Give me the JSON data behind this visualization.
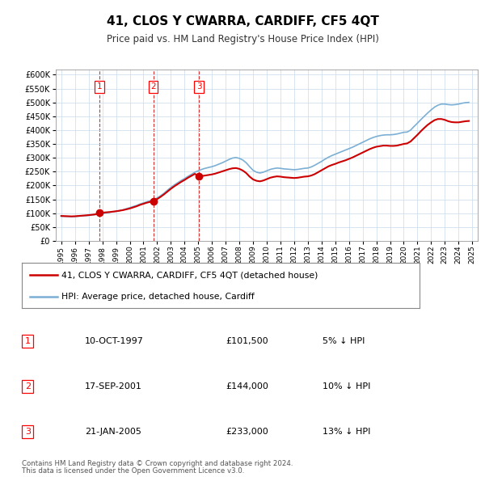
{
  "title": "41, CLOS Y CWARRA, CARDIFF, CF5 4QT",
  "subtitle": "Price paid vs. HM Land Registry's House Price Index (HPI)",
  "legend_line1": "41, CLOS Y CWARRA, CARDIFF, CF5 4QT (detached house)",
  "legend_line2": "HPI: Average price, detached house, Cardiff",
  "footer_line1": "Contains HM Land Registry data © Crown copyright and database right 2024.",
  "footer_line2": "This data is licensed under the Open Government Licence v3.0.",
  "transactions": [
    {
      "num": 1,
      "date": "10-OCT-1997",
      "price": 101500,
      "price_str": "£101,500",
      "pct": "5%",
      "year": 1997.78
    },
    {
      "num": 2,
      "date": "17-SEP-2001",
      "price": 144000,
      "price_str": "£144,000",
      "pct": "10%",
      "year": 2001.71
    },
    {
      "num": 3,
      "date": "21-JAN-2005",
      "price": 233000,
      "price_str": "£233,000",
      "pct": "13%",
      "year": 2005.05
    }
  ],
  "price_color": "#cc0000",
  "hpi_color": "#7bafd4",
  "vline_color": "#cc0000",
  "dot_color": "#cc0000",
  "ylim": [
    0,
    620000
  ],
  "yticks": [
    0,
    50000,
    100000,
    150000,
    200000,
    250000,
    300000,
    350000,
    400000,
    450000,
    500000,
    550000,
    600000
  ],
  "xlim_start": 1994.6,
  "xlim_end": 2025.4,
  "xticks": [
    1995,
    1996,
    1997,
    1998,
    1999,
    2000,
    2001,
    2002,
    2003,
    2004,
    2005,
    2006,
    2007,
    2008,
    2009,
    2010,
    2011,
    2012,
    2013,
    2014,
    2015,
    2016,
    2017,
    2018,
    2019,
    2020,
    2021,
    2022,
    2023,
    2024,
    2025
  ],
  "hpi_data": [
    [
      1995.0,
      89000
    ],
    [
      1995.25,
      88500
    ],
    [
      1995.5,
      88000
    ],
    [
      1995.75,
      87500
    ],
    [
      1996.0,
      88000
    ],
    [
      1996.25,
      89000
    ],
    [
      1996.5,
      90000
    ],
    [
      1996.75,
      91000
    ],
    [
      1997.0,
      92000
    ],
    [
      1997.25,
      93500
    ],
    [
      1997.5,
      95000
    ],
    [
      1997.75,
      97000
    ],
    [
      1998.0,
      99000
    ],
    [
      1998.25,
      101000
    ],
    [
      1998.5,
      103000
    ],
    [
      1998.75,
      105000
    ],
    [
      1999.0,
      107000
    ],
    [
      1999.25,
      109000
    ],
    [
      1999.5,
      112000
    ],
    [
      1999.75,
      116000
    ],
    [
      2000.0,
      120000
    ],
    [
      2000.25,
      124000
    ],
    [
      2000.5,
      128000
    ],
    [
      2000.75,
      133000
    ],
    [
      2001.0,
      137000
    ],
    [
      2001.25,
      141000
    ],
    [
      2001.5,
      145000
    ],
    [
      2001.75,
      149000
    ],
    [
      2002.0,
      155000
    ],
    [
      2002.25,
      163000
    ],
    [
      2002.5,
      172000
    ],
    [
      2002.75,
      183000
    ],
    [
      2003.0,
      193000
    ],
    [
      2003.25,
      202000
    ],
    [
      2003.5,
      210000
    ],
    [
      2003.75,
      218000
    ],
    [
      2004.0,
      225000
    ],
    [
      2004.25,
      233000
    ],
    [
      2004.5,
      240000
    ],
    [
      2004.75,
      248000
    ],
    [
      2005.0,
      253000
    ],
    [
      2005.25,
      258000
    ],
    [
      2005.5,
      262000
    ],
    [
      2005.75,
      265000
    ],
    [
      2006.0,
      268000
    ],
    [
      2006.25,
      272000
    ],
    [
      2006.5,
      277000
    ],
    [
      2006.75,
      282000
    ],
    [
      2007.0,
      288000
    ],
    [
      2007.25,
      294000
    ],
    [
      2007.5,
      299000
    ],
    [
      2007.75,
      301000
    ],
    [
      2008.0,
      298000
    ],
    [
      2008.25,
      292000
    ],
    [
      2008.5,
      282000
    ],
    [
      2008.75,
      268000
    ],
    [
      2009.0,
      255000
    ],
    [
      2009.25,
      248000
    ],
    [
      2009.5,
      245000
    ],
    [
      2009.75,
      248000
    ],
    [
      2010.0,
      253000
    ],
    [
      2010.25,
      258000
    ],
    [
      2010.5,
      261000
    ],
    [
      2010.75,
      263000
    ],
    [
      2011.0,
      262000
    ],
    [
      2011.25,
      260000
    ],
    [
      2011.5,
      259000
    ],
    [
      2011.75,
      258000
    ],
    [
      2012.0,
      257000
    ],
    [
      2012.25,
      258000
    ],
    [
      2012.5,
      260000
    ],
    [
      2012.75,
      262000
    ],
    [
      2013.0,
      263000
    ],
    [
      2013.25,
      267000
    ],
    [
      2013.5,
      273000
    ],
    [
      2013.75,
      280000
    ],
    [
      2014.0,
      287000
    ],
    [
      2014.25,
      295000
    ],
    [
      2014.5,
      302000
    ],
    [
      2014.75,
      308000
    ],
    [
      2015.0,
      313000
    ],
    [
      2015.25,
      318000
    ],
    [
      2015.5,
      323000
    ],
    [
      2015.75,
      328000
    ],
    [
      2016.0,
      333000
    ],
    [
      2016.25,
      338000
    ],
    [
      2016.5,
      344000
    ],
    [
      2016.75,
      350000
    ],
    [
      2017.0,
      356000
    ],
    [
      2017.25,
      362000
    ],
    [
      2017.5,
      368000
    ],
    [
      2017.75,
      373000
    ],
    [
      2018.0,
      377000
    ],
    [
      2018.25,
      380000
    ],
    [
      2018.5,
      382000
    ],
    [
      2018.75,
      383000
    ],
    [
      2019.0,
      383000
    ],
    [
      2019.25,
      384000
    ],
    [
      2019.5,
      386000
    ],
    [
      2019.75,
      389000
    ],
    [
      2020.0,
      392000
    ],
    [
      2020.25,
      393000
    ],
    [
      2020.5,
      400000
    ],
    [
      2020.75,
      413000
    ],
    [
      2021.0,
      425000
    ],
    [
      2021.25,
      438000
    ],
    [
      2021.5,
      450000
    ],
    [
      2021.75,
      462000
    ],
    [
      2022.0,
      473000
    ],
    [
      2022.25,
      483000
    ],
    [
      2022.5,
      490000
    ],
    [
      2022.75,
      494000
    ],
    [
      2023.0,
      494000
    ],
    [
      2023.25,
      492000
    ],
    [
      2023.5,
      491000
    ],
    [
      2023.75,
      492000
    ],
    [
      2024.0,
      494000
    ],
    [
      2024.25,
      497000
    ],
    [
      2024.5,
      499000
    ],
    [
      2024.75,
      500000
    ]
  ],
  "price_data": [
    [
      1995.0,
      90000
    ],
    [
      1995.25,
      89500
    ],
    [
      1995.5,
      89000
    ],
    [
      1995.75,
      88500
    ],
    [
      1996.0,
      89000
    ],
    [
      1996.25,
      90000
    ],
    [
      1996.5,
      91000
    ],
    [
      1996.75,
      92000
    ],
    [
      1997.0,
      93000
    ],
    [
      1997.25,
      94500
    ],
    [
      1997.5,
      96000
    ],
    [
      1997.78,
      101500
    ],
    [
      1998.0,
      102000
    ],
    [
      1998.25,
      103000
    ],
    [
      1998.5,
      104000
    ],
    [
      1998.75,
      105500
    ],
    [
      1999.0,
      107000
    ],
    [
      1999.25,
      109000
    ],
    [
      1999.5,
      111000
    ],
    [
      1999.75,
      114000
    ],
    [
      2000.0,
      117000
    ],
    [
      2000.25,
      121000
    ],
    [
      2000.5,
      125000
    ],
    [
      2000.75,
      130000
    ],
    [
      2001.0,
      134000
    ],
    [
      2001.25,
      138000
    ],
    [
      2001.5,
      141000
    ],
    [
      2001.71,
      144000
    ],
    [
      2001.75,
      145000
    ],
    [
      2002.0,
      151000
    ],
    [
      2002.25,
      159000
    ],
    [
      2002.5,
      168000
    ],
    [
      2002.75,
      178000
    ],
    [
      2003.0,
      188000
    ],
    [
      2003.25,
      197000
    ],
    [
      2003.5,
      205000
    ],
    [
      2003.75,
      213000
    ],
    [
      2004.0,
      220000
    ],
    [
      2004.25,
      228000
    ],
    [
      2004.5,
      235000
    ],
    [
      2004.75,
      242000
    ],
    [
      2005.05,
      233000
    ],
    [
      2005.25,
      234000
    ],
    [
      2005.5,
      236000
    ],
    [
      2005.75,
      238000
    ],
    [
      2006.0,
      240000
    ],
    [
      2006.25,
      243000
    ],
    [
      2006.5,
      247000
    ],
    [
      2006.75,
      251000
    ],
    [
      2007.0,
      255000
    ],
    [
      2007.25,
      259000
    ],
    [
      2007.5,
      262000
    ],
    [
      2007.75,
      263000
    ],
    [
      2008.0,
      260000
    ],
    [
      2008.25,
      254000
    ],
    [
      2008.5,
      245000
    ],
    [
      2008.75,
      232000
    ],
    [
      2009.0,
      222000
    ],
    [
      2009.25,
      217000
    ],
    [
      2009.5,
      215000
    ],
    [
      2009.75,
      218000
    ],
    [
      2010.0,
      223000
    ],
    [
      2010.25,
      228000
    ],
    [
      2010.5,
      231000
    ],
    [
      2010.75,
      233000
    ],
    [
      2011.0,
      232000
    ],
    [
      2011.25,
      230000
    ],
    [
      2011.5,
      229000
    ],
    [
      2011.75,
      228000
    ],
    [
      2012.0,
      227000
    ],
    [
      2012.25,
      228000
    ],
    [
      2012.5,
      230000
    ],
    [
      2012.75,
      232000
    ],
    [
      2013.0,
      233000
    ],
    [
      2013.25,
      236000
    ],
    [
      2013.5,
      241000
    ],
    [
      2013.75,
      248000
    ],
    [
      2014.0,
      255000
    ],
    [
      2014.25,
      262000
    ],
    [
      2014.5,
      269000
    ],
    [
      2014.75,
      274000
    ],
    [
      2015.0,
      278000
    ],
    [
      2015.25,
      283000
    ],
    [
      2015.5,
      287000
    ],
    [
      2015.75,
      291000
    ],
    [
      2016.0,
      296000
    ],
    [
      2016.25,
      301000
    ],
    [
      2016.5,
      307000
    ],
    [
      2016.75,
      313000
    ],
    [
      2017.0,
      319000
    ],
    [
      2017.25,
      325000
    ],
    [
      2017.5,
      331000
    ],
    [
      2017.75,
      336000
    ],
    [
      2018.0,
      340000
    ],
    [
      2018.25,
      342000
    ],
    [
      2018.5,
      344000
    ],
    [
      2018.75,
      344000
    ],
    [
      2019.0,
      343000
    ],
    [
      2019.25,
      343000
    ],
    [
      2019.5,
      344000
    ],
    [
      2019.75,
      347000
    ],
    [
      2020.0,
      350000
    ],
    [
      2020.25,
      352000
    ],
    [
      2020.5,
      359000
    ],
    [
      2020.75,
      371000
    ],
    [
      2021.0,
      383000
    ],
    [
      2021.25,
      396000
    ],
    [
      2021.5,
      408000
    ],
    [
      2021.75,
      419000
    ],
    [
      2022.0,
      428000
    ],
    [
      2022.25,
      436000
    ],
    [
      2022.5,
      440000
    ],
    [
      2022.75,
      440000
    ],
    [
      2023.0,
      437000
    ],
    [
      2023.25,
      432000
    ],
    [
      2023.5,
      429000
    ],
    [
      2023.75,
      428000
    ],
    [
      2024.0,
      428000
    ],
    [
      2024.25,
      430000
    ],
    [
      2024.5,
      432000
    ],
    [
      2024.75,
      433000
    ]
  ]
}
